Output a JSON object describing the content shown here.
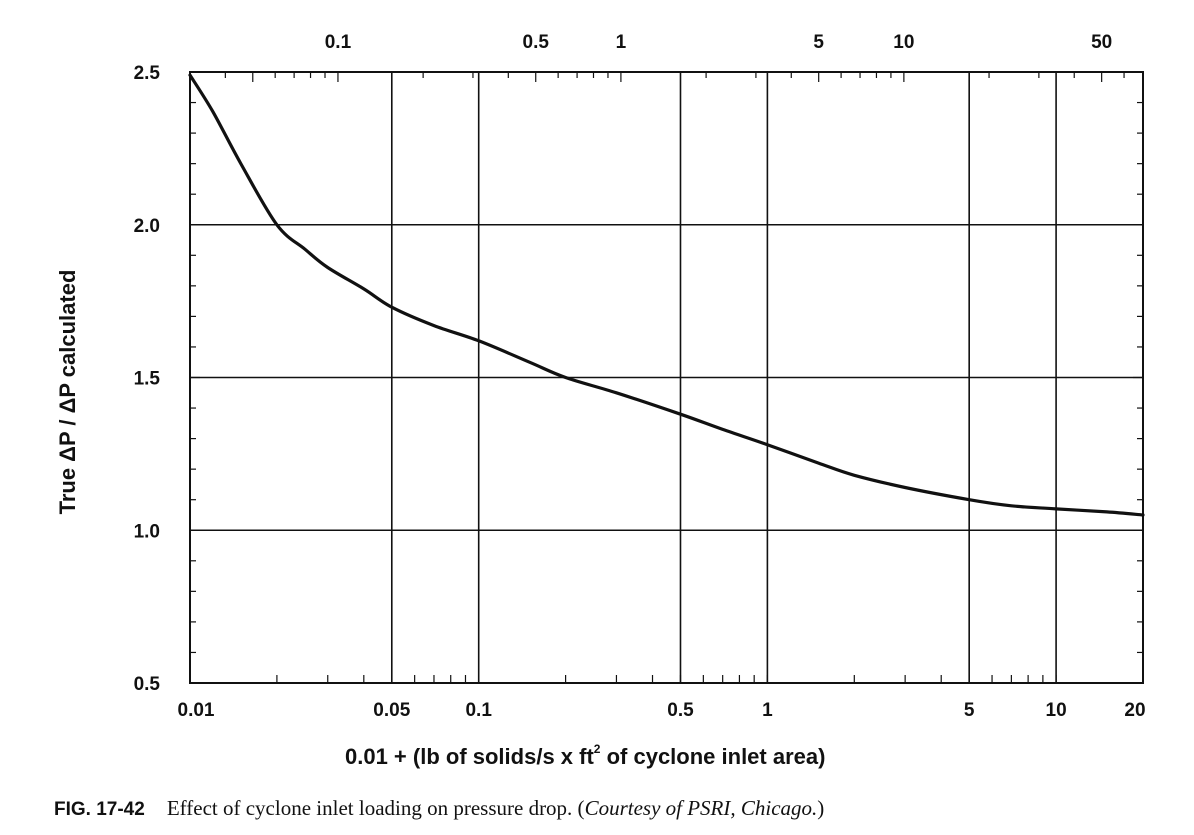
{
  "chart_data": {
    "type": "line",
    "title": "",
    "xlabel_main": "0.01 + (lb of solids/s x ft",
    "xlabel_sup": "2",
    "xlabel_rest": " of cyclone inlet area)",
    "ylabel": "True ΔP / ΔP calculated",
    "x_scale": "log",
    "xlim": [
      0.01,
      20
    ],
    "ylim": [
      0.5,
      2.5
    ],
    "grid": true,
    "bottom_ticks": [
      {
        "value": 0.01,
        "label": "0.01"
      },
      {
        "value": 0.05,
        "label": "0.05"
      },
      {
        "value": 0.1,
        "label": "0.1"
      },
      {
        "value": 0.5,
        "label": "0.5"
      },
      {
        "value": 1,
        "label": "1"
      },
      {
        "value": 5,
        "label": "5"
      },
      {
        "value": 10,
        "label": "10"
      },
      {
        "value": 20,
        "label": "20"
      }
    ],
    "top_ticks": [
      {
        "value": 0.1,
        "label": "0.1"
      },
      {
        "value": 0.5,
        "label": "0.5"
      },
      {
        "value": 1,
        "label": "1"
      },
      {
        "value": 5,
        "label": "5"
      },
      {
        "value": 10,
        "label": "10"
      },
      {
        "value": 50,
        "label": "50"
      }
    ],
    "top_axis_range": [
      0.03,
      70
    ],
    "y_ticks": [
      {
        "value": 0.5,
        "label": "0.5"
      },
      {
        "value": 1.0,
        "label": "1.0"
      },
      {
        "value": 1.5,
        "label": "1.5"
      },
      {
        "value": 2.0,
        "label": "2.0"
      },
      {
        "value": 2.5,
        "label": "2.5"
      }
    ],
    "series": [
      {
        "x": [
          0.01,
          0.012,
          0.015,
          0.02,
          0.025,
          0.03,
          0.04,
          0.05,
          0.07,
          0.1,
          0.15,
          0.2,
          0.3,
          0.5,
          0.7,
          1,
          1.5,
          2,
          3,
          5,
          7,
          10,
          15,
          20
        ],
        "y": [
          2.49,
          2.37,
          2.2,
          2.0,
          1.92,
          1.86,
          1.79,
          1.73,
          1.67,
          1.62,
          1.55,
          1.5,
          1.45,
          1.38,
          1.33,
          1.28,
          1.22,
          1.18,
          1.14,
          1.1,
          1.08,
          1.07,
          1.06,
          1.05
        ]
      }
    ]
  },
  "caption": {
    "fig": "FIG. 17-42",
    "text": "Effect of cyclone inlet loading on pressure drop. (",
    "credit": "Courtesy of PSRI, Chicago.",
    "close": ")"
  }
}
